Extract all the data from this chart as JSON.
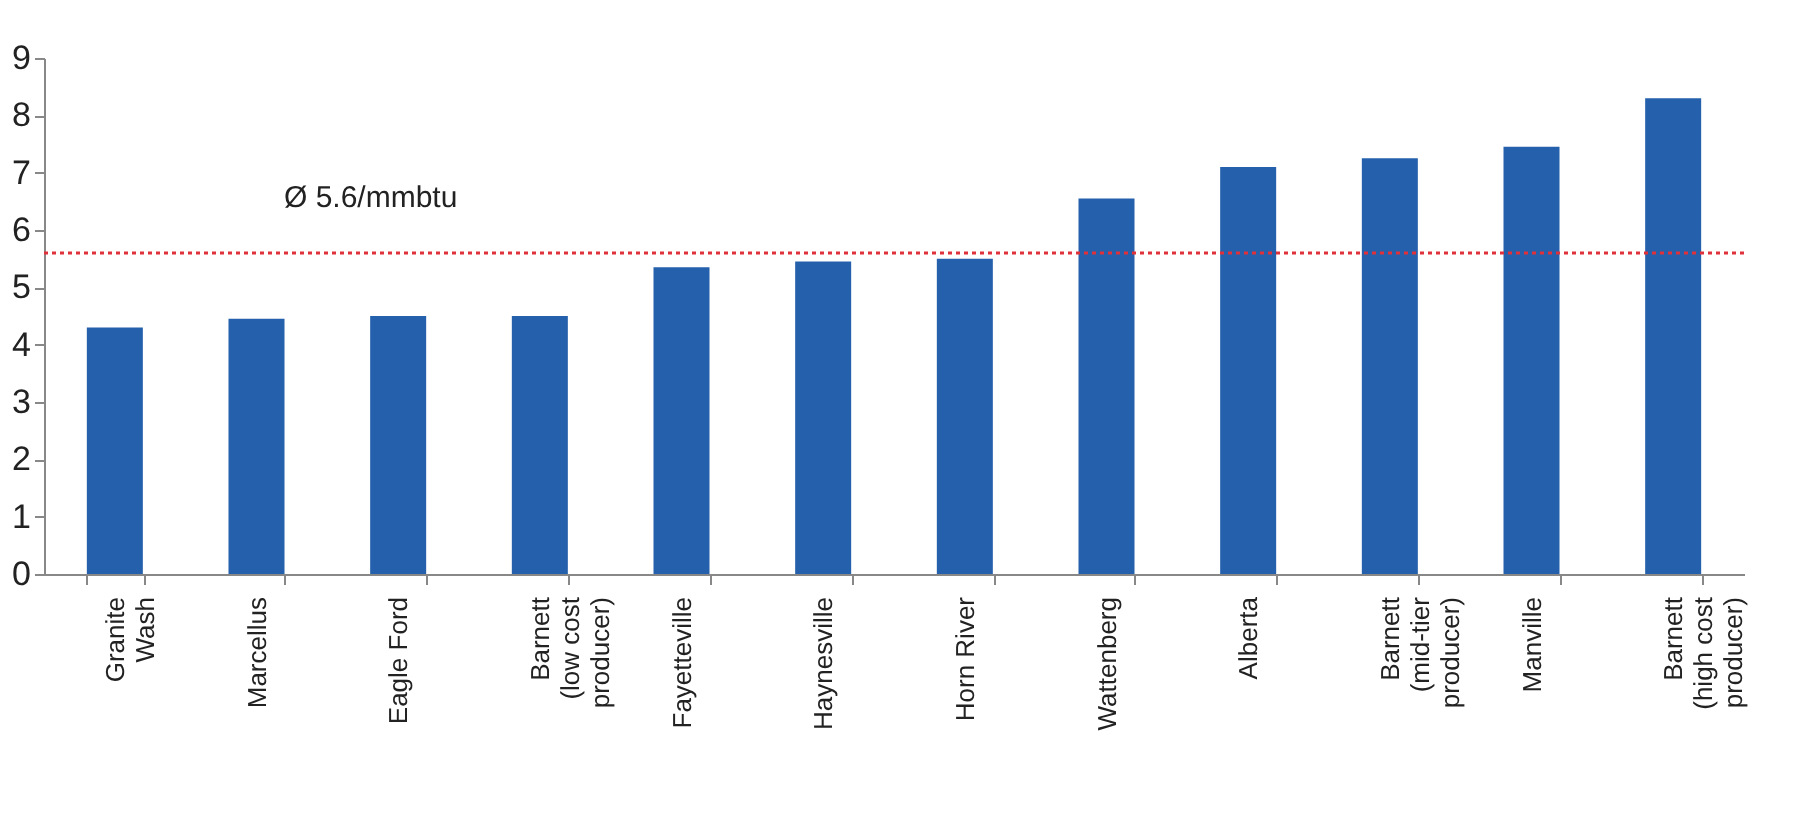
{
  "chart_data": {
    "type": "bar",
    "categories": [
      "Granite\nWash",
      "Marcellus",
      "Eagle Ford",
      "Barnett\n(low cost\nproducer)",
      "Fayetteville",
      "Haynesville",
      "Horn River",
      "Wattenberg",
      "Alberta",
      "Barnett\n(mid-tier\nproducer)",
      "Manville",
      "Barnett\n(high cost\nproducer)"
    ],
    "values": [
      4.3,
      4.45,
      4.5,
      4.5,
      5.35,
      5.45,
      5.5,
      6.55,
      7.1,
      7.25,
      7.45,
      8.3
    ],
    "color": "#2460ab",
    "ylim": [
      0,
      9
    ],
    "yticks": [
      0,
      1,
      2,
      3,
      4,
      5,
      6,
      7,
      8,
      9
    ],
    "grid": false,
    "ref_lines": [
      {
        "axis": "y",
        "value": 5.6,
        "label": "Ø 5.6/mmbtu",
        "color": "#e0303a",
        "line_style": "dotted"
      }
    ]
  }
}
